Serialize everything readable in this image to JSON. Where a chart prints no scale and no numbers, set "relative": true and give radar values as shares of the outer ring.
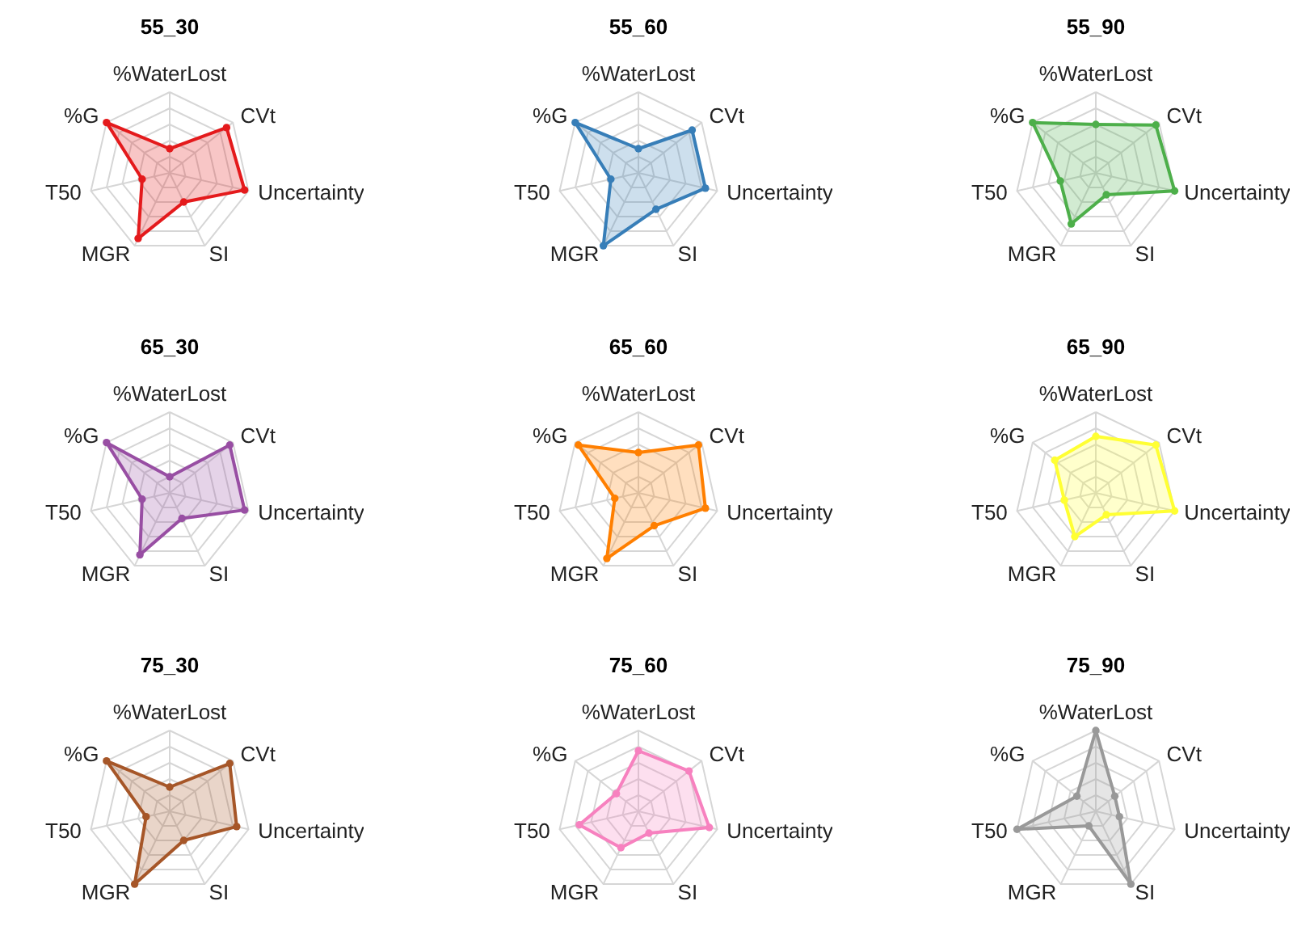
{
  "chart_data": [
    {
      "type": "radar",
      "title": "55_30",
      "categories": [
        "%WaterLost",
        "CVt",
        "Uncertainty",
        "SI",
        "MGR",
        "T50",
        "%G"
      ],
      "relative": true,
      "grid": true,
      "marker": "circle",
      "series": [
        {
          "color": "#e41a1c",
          "values": [
            0.3,
            0.9,
            0.95,
            0.4,
            0.9,
            0.35,
            1.0
          ]
        }
      ]
    },
    {
      "type": "radar",
      "title": "55_60",
      "categories": [
        "%WaterLost",
        "CVt",
        "Uncertainty",
        "SI",
        "MGR",
        "T50",
        "%G"
      ],
      "relative": true,
      "grid": true,
      "marker": "circle",
      "series": [
        {
          "color": "#377eb8",
          "values": [
            0.3,
            0.85,
            0.85,
            0.5,
            1.0,
            0.35,
            1.0
          ]
        }
      ]
    },
    {
      "type": "radar",
      "title": "55_90",
      "categories": [
        "%WaterLost",
        "CVt",
        "Uncertainty",
        "SI",
        "MGR",
        "T50",
        "%G"
      ],
      "relative": true,
      "grid": true,
      "marker": "circle",
      "series": [
        {
          "color": "#4daf4a",
          "values": [
            0.6,
            0.95,
            1.0,
            0.3,
            0.7,
            0.45,
            1.0
          ]
        }
      ]
    },
    {
      "type": "radar",
      "title": "65_30",
      "categories": [
        "%WaterLost",
        "CVt",
        "Uncertainty",
        "SI",
        "MGR",
        "T50",
        "%G"
      ],
      "relative": true,
      "grid": true,
      "marker": "circle",
      "series": [
        {
          "color": "#984ea3",
          "values": [
            0.2,
            0.95,
            0.95,
            0.35,
            0.85,
            0.35,
            1.0
          ]
        }
      ]
    },
    {
      "type": "radar",
      "title": "65_60",
      "categories": [
        "%WaterLost",
        "CVt",
        "Uncertainty",
        "SI",
        "MGR",
        "T50",
        "%G"
      ],
      "relative": true,
      "grid": true,
      "marker": "circle",
      "series": [
        {
          "color": "#ff7f00",
          "values": [
            0.5,
            0.95,
            0.85,
            0.45,
            0.9,
            0.3,
            0.95
          ]
        }
      ]
    },
    {
      "type": "radar",
      "title": "65_90",
      "categories": [
        "%WaterLost",
        "CVt",
        "Uncertainty",
        "SI",
        "MGR",
        "T50",
        "%G"
      ],
      "relative": true,
      "grid": true,
      "marker": "circle",
      "series": [
        {
          "color": "#ffff33",
          "values": [
            0.7,
            0.95,
            1.0,
            0.3,
            0.6,
            0.4,
            0.65
          ]
        }
      ]
    },
    {
      "type": "radar",
      "title": "75_30",
      "categories": [
        "%WaterLost",
        "CVt",
        "Uncertainty",
        "SI",
        "MGR",
        "T50",
        "%G"
      ],
      "relative": true,
      "grid": true,
      "marker": "circle",
      "series": [
        {
          "color": "#a65628",
          "values": [
            0.3,
            0.95,
            0.85,
            0.4,
            1.0,
            0.3,
            1.0
          ]
        }
      ]
    },
    {
      "type": "radar",
      "title": "75_60",
      "categories": [
        "%WaterLost",
        "CVt",
        "Uncertainty",
        "SI",
        "MGR",
        "T50",
        "%G"
      ],
      "relative": true,
      "grid": true,
      "marker": "circle",
      "series": [
        {
          "color": "#f781bf",
          "values": [
            0.75,
            0.8,
            0.9,
            0.3,
            0.5,
            0.75,
            0.35
          ]
        }
      ]
    },
    {
      "type": "radar",
      "title": "75_90",
      "categories": [
        "%WaterLost",
        "CVt",
        "Uncertainty",
        "SI",
        "MGR",
        "T50",
        "%G"
      ],
      "relative": true,
      "grid": true,
      "marker": "circle",
      "series": [
        {
          "color": "#999999",
          "values": [
            1.0,
            0.3,
            0.3,
            1.0,
            0.2,
            1.0,
            0.3
          ]
        }
      ]
    }
  ]
}
